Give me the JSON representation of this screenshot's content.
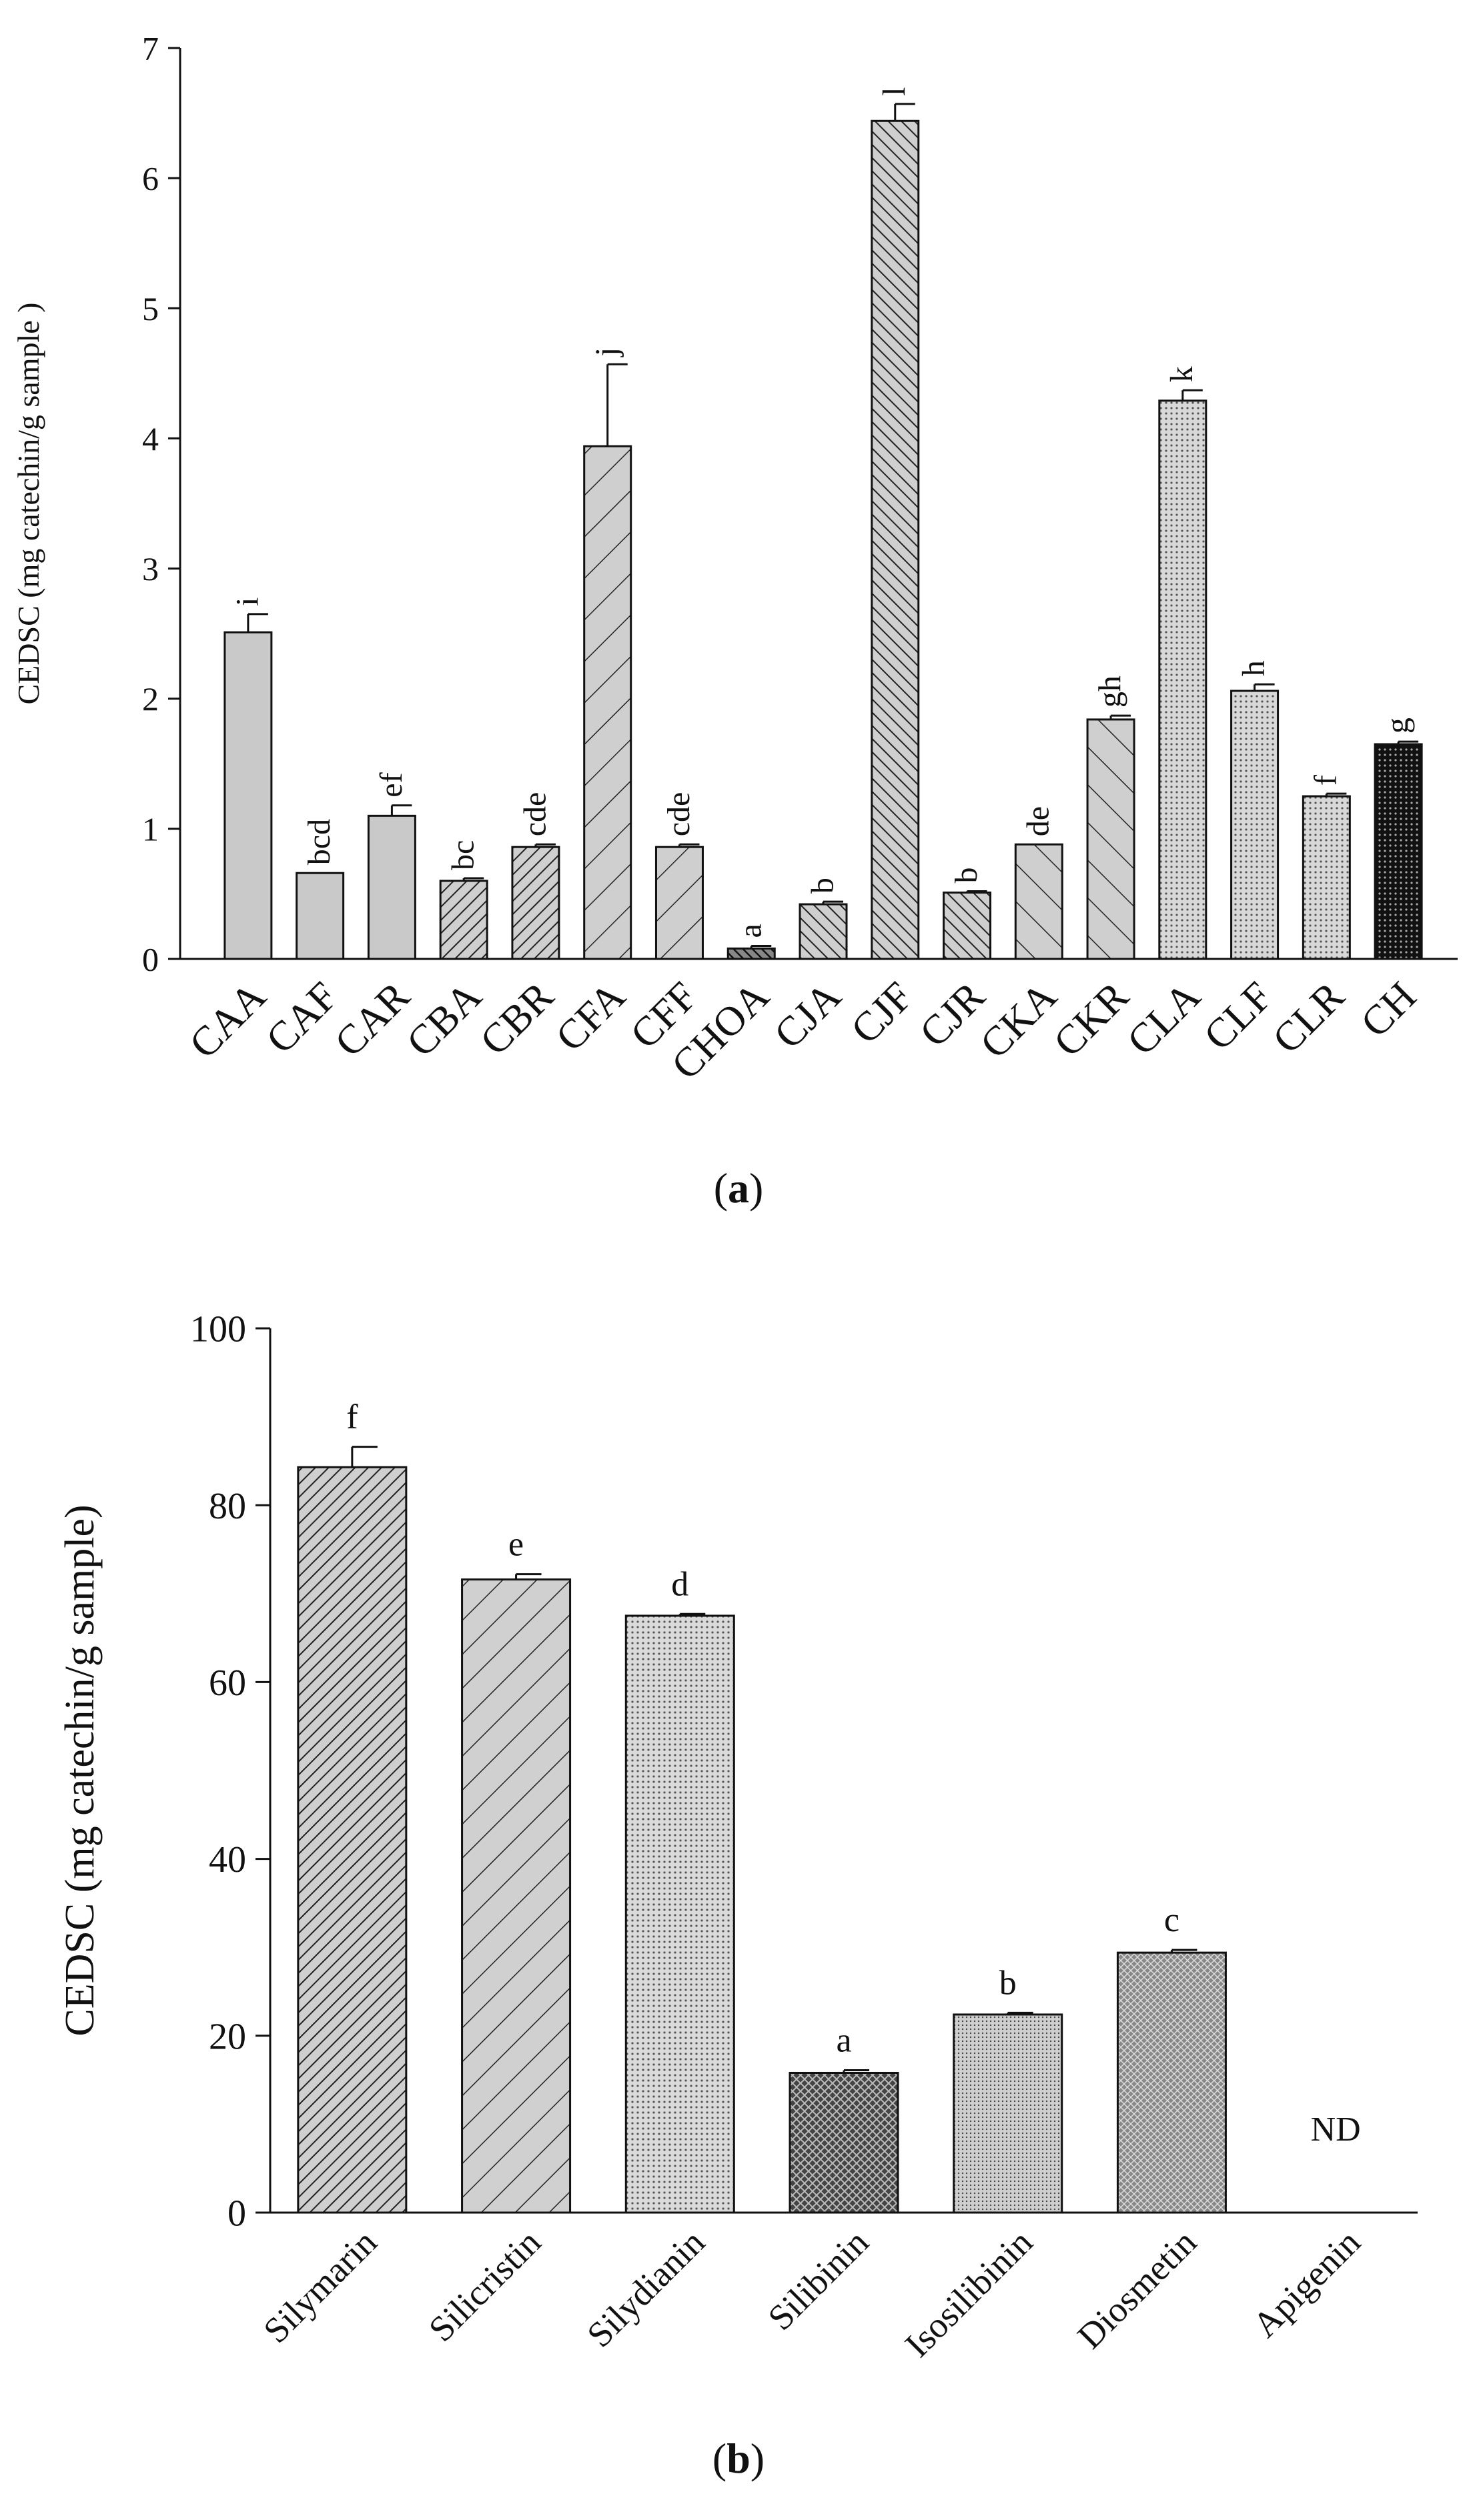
{
  "chart_data": [
    {
      "panel": "(a)",
      "type": "bar",
      "title": "",
      "xlabel": "",
      "ylabel": "CEDSC (mg catechin/g sample )",
      "ylim": [
        0,
        7
      ],
      "yticks": [
        "0",
        "1",
        "2",
        "3",
        "4",
        "5",
        "6",
        "7"
      ],
      "categories": [
        "CAA",
        "CAF",
        "CAR",
        "CBA",
        "CBR",
        "CFA",
        "CFF",
        "CHOA",
        "CJA",
        "CJF",
        "CJR",
        "CKA",
        "CKR",
        "CLA",
        "CLF",
        "CLR",
        "CH"
      ],
      "values": [
        2.51,
        0.66,
        1.1,
        0.6,
        0.86,
        3.94,
        0.86,
        0.08,
        0.42,
        6.44,
        0.51,
        0.88,
        1.84,
        4.29,
        2.06,
        1.25,
        1.65
      ],
      "errors": [
        0.14,
        0.0,
        0.08,
        0.02,
        0.02,
        0.63,
        0.02,
        0.02,
        0.02,
        0.13,
        0.01,
        0.0,
        0.03,
        0.08,
        0.05,
        0.02,
        0.02
      ],
      "letters": [
        "i",
        "bcd",
        "ef",
        "bc",
        "cde",
        "j",
        "cde",
        "a",
        "b",
        "l",
        "b",
        "de",
        "gh",
        "k",
        "h",
        "f",
        "g"
      ],
      "patterns": [
        "solid",
        "solid",
        "solid",
        "hatch-right-dense",
        "hatch-right-dense",
        "hatch-right-wide",
        "hatch-right-wide",
        "hatch-dense-dark",
        "hatch-left-dense",
        "hatch-left-dense",
        "hatch-left-dense",
        "hatch-left-wide",
        "hatch-left-wide",
        "dots",
        "dots",
        "dots",
        "black-dots"
      ],
      "caption_letter": "a"
    },
    {
      "panel": "(b)",
      "type": "bar",
      "title": "",
      "xlabel": "",
      "ylabel": "CEDSC (mg catechin/g sample)",
      "ylim": [
        0,
        100
      ],
      "yticks": [
        "0",
        "20",
        "40",
        "60",
        "80",
        "100"
      ],
      "categories": [
        "Silymarin",
        "Silicristin",
        "Silydianin",
        "Silibinin",
        "Isosilibinin",
        "Diosmetin",
        "Apigenin"
      ],
      "values": [
        84.3,
        71.6,
        67.5,
        15.8,
        22.4,
        29.4,
        0
      ],
      "errors": [
        2.3,
        0.6,
        0.2,
        0.3,
        0.2,
        0.3,
        0
      ],
      "letters": [
        "f",
        "e",
        "d",
        "a",
        "b",
        "c",
        "ND"
      ],
      "patterns": [
        "hatch-right-dense",
        "hatch-right-wide",
        "dots",
        "crosshatch-dark",
        "dots-fine",
        "crosshatch-mid",
        "none"
      ],
      "caption_letter": "b"
    }
  ]
}
